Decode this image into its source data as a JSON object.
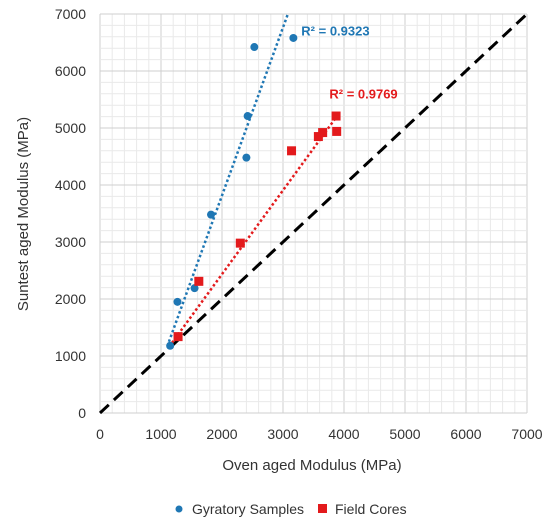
{
  "chart_data": {
    "type": "scatter",
    "xlabel": "Oven aged Modulus (MPa)",
    "ylabel": "Suntest aged Modulus (MPa)",
    "xlim": [
      0,
      7000
    ],
    "ylim": [
      0,
      7000
    ],
    "major_step": 1000,
    "minor_step": 200,
    "grid": true,
    "legend_position": "bottom",
    "x_ticks": [
      "0",
      "1000",
      "2000",
      "3000",
      "4000",
      "5000",
      "6000",
      "7000"
    ],
    "y_ticks": [
      "0",
      "1000",
      "2000",
      "3000",
      "4000",
      "5000",
      "6000",
      "7000"
    ],
    "series": [
      {
        "name": "Gyratory Samples",
        "marker": "circle",
        "color": "#1f77b4",
        "x": [
          1150,
          1270,
          1550,
          1820,
          2400,
          2420,
          2530,
          3170
        ],
        "y": [
          1180,
          1950,
          2190,
          3480,
          4480,
          5210,
          6420,
          6580
        ],
        "trendline": {
          "x": [
            1130,
            3080
          ],
          "y": [
            1250,
            7000
          ],
          "label": "R² = 0.9323",
          "label_x": 3300,
          "label_y": 6620
        }
      },
      {
        "name": "Field Cores",
        "marker": "square",
        "color": "#e31a1c",
        "x": [
          1280,
          1620,
          2300,
          3140,
          3580,
          3650,
          3870,
          3880
        ],
        "y": [
          1340,
          2310,
          2980,
          4600,
          4850,
          4920,
          5210,
          4940
        ],
        "trendline": {
          "x": [
            1180,
            3880
          ],
          "y": [
            1230,
            5200
          ],
          "label": "R² = 0.9769",
          "label_x": 3760,
          "label_y": 5520
        }
      }
    ],
    "reference_line": {
      "x": [
        0,
        7000
      ],
      "y": [
        0,
        7000
      ],
      "style": "dashed",
      "color": "#000000"
    }
  }
}
